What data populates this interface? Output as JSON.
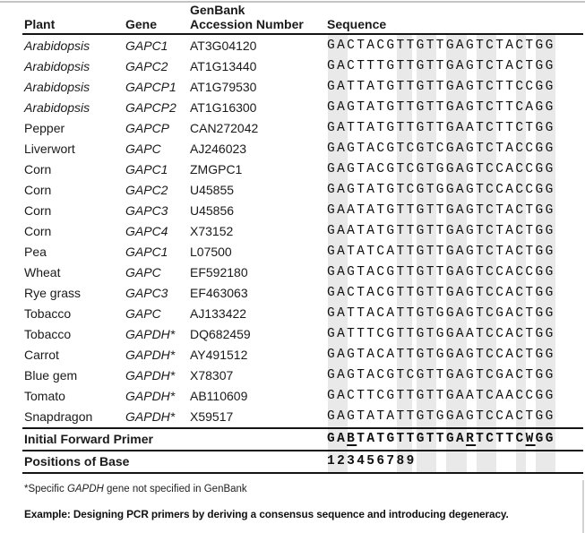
{
  "table": {
    "headers": {
      "plant": "Plant",
      "gene": "Gene",
      "accession_line1": "GenBank",
      "accession_line2": "Accession Number",
      "sequence": "Sequence"
    },
    "rows": [
      {
        "plant": "Arabidopsis",
        "plant_italic": true,
        "gene": "GAPC1",
        "accession": "AT3G04120",
        "sequence": "GACTACGTTGTTGAGTCTACTGG"
      },
      {
        "plant": "Arabidopsis",
        "plant_italic": true,
        "gene": "GAPC2",
        "accession": "AT1G13440",
        "sequence": "GACTTTGTTGTTGAGTCTACTGG"
      },
      {
        "plant": "Arabidopsis",
        "plant_italic": true,
        "gene": "GAPCP1",
        "accession": "AT1G79530",
        "sequence": "GATTATGTTGTTGAGTCTTCCGG"
      },
      {
        "plant": "Arabidopsis",
        "plant_italic": true,
        "gene": "GAPCP2",
        "accession": "AT1G16300",
        "sequence": "GAGTATGTTGTTGAGTCTTCAGG"
      },
      {
        "plant": "Pepper",
        "plant_italic": false,
        "gene": "GAPCP",
        "accession": "CAN272042",
        "sequence": "GATTATGTTGTTGAATCTTCTGG"
      },
      {
        "plant": "Liverwort",
        "plant_italic": false,
        "gene": "GAPC",
        "accession": "AJ246023",
        "sequence": "GAGTACGTCGTCGAGTCTACCGG"
      },
      {
        "plant": "Corn",
        "plant_italic": false,
        "gene": "GAPC1",
        "accession": "ZMGPC1",
        "sequence": "GAGTACGTCGTGGAGTCCACCGG"
      },
      {
        "plant": "Corn",
        "plant_italic": false,
        "gene": "GAPC2",
        "accession": "U45855",
        "sequence": "GAGTATGTCGTGGAGTCCACCGG"
      },
      {
        "plant": "Corn",
        "plant_italic": false,
        "gene": "GAPC3",
        "accession": "U45856",
        "sequence": "GAATATGTTGTTGAGTCTACTGG"
      },
      {
        "plant": "Corn",
        "plant_italic": false,
        "gene": "GAPC4",
        "accession": "X73152",
        "sequence": "GAATATGTTGTTGAGTCTACTGG"
      },
      {
        "plant": "Pea",
        "plant_italic": false,
        "gene": "GAPC1",
        "accession": "L07500",
        "sequence": "GATATCATTGTTGAGTCTACTGG"
      },
      {
        "plant": "Wheat",
        "plant_italic": false,
        "gene": "GAPC",
        "accession": "EF592180",
        "sequence": "GAGTACGTTGTTGAGTCCACCGG"
      },
      {
        "plant": "Rye grass",
        "plant_italic": false,
        "gene": "GAPC3",
        "accession": "EF463063",
        "sequence": "GACTACGTTGTTGAGTCCACTGG"
      },
      {
        "plant": "Tobacco",
        "plant_italic": false,
        "gene": "GAPC",
        "accession": "AJ133422",
        "sequence": "GATTACATTGTGGAGTCGACTGG"
      },
      {
        "plant": "Tobacco",
        "plant_italic": false,
        "gene": "GAPDH*",
        "accession": "DQ682459",
        "sequence": "GATTTCGTTGTGGAATCCACTGG"
      },
      {
        "plant": "Carrot",
        "plant_italic": false,
        "gene": "GAPDH*",
        "accession": "AY491512",
        "sequence": "GAGTACATTGTGGAGTCCACTGG"
      },
      {
        "plant": "Blue gem",
        "plant_italic": false,
        "gene": "GAPDH*",
        "accession": "X78307",
        "sequence": "GAGTACGTCGTTGAGTCGACTGG"
      },
      {
        "plant": "Tomato",
        "plant_italic": false,
        "gene": "GAPDH*",
        "accession": "AB110609",
        "sequence": "GACTTCGTTGTTGAATCAACCGG"
      },
      {
        "plant": "Snapdragon",
        "plant_italic": false,
        "gene": "GAPDH*",
        "accession": "X59517",
        "sequence": "GAGTATATTGTGGAGTCCACTGG"
      }
    ],
    "primer": {
      "label": "Initial Forward Primer",
      "sequence": "GABTATGTTGTTGARTCTTCWGG",
      "underline_positions": [
        2,
        14,
        20
      ]
    },
    "positions": {
      "label": "Positions of Base",
      "value": "123456789"
    }
  },
  "shading": {
    "color": "#e9e9e9",
    "conserved_char_bands": [
      {
        "start": 0,
        "width": 2
      },
      {
        "start": 7,
        "width": 1.5
      },
      {
        "start": 9,
        "width": 2
      },
      {
        "start": 12,
        "width": 2
      },
      {
        "start": 15,
        "width": 2
      },
      {
        "start": 19,
        "width": 1
      },
      {
        "start": 21,
        "width": 2
      }
    ]
  },
  "footnote": {
    "prefix": "*Specific ",
    "gene": "GAPDH",
    "suffix": " gene not specified in GenBank"
  },
  "caption": "Example: Designing PCR primers by deriving a consensus sequence and introducing degeneracy."
}
